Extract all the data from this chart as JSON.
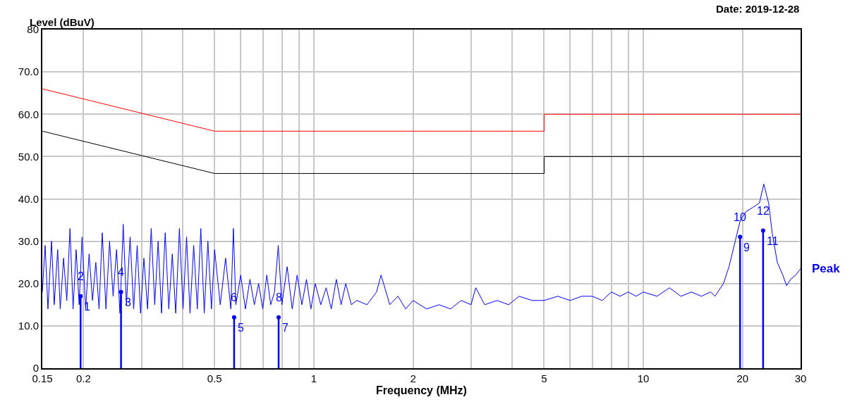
{
  "chart_data": {
    "type": "line",
    "xlabel": "Frequency (MHz)",
    "ylabel": "Level (dBuV)",
    "log": "x",
    "grid": true,
    "legend": false,
    "xlim": [
      0.15,
      30
    ],
    "ylim": [
      0,
      80
    ],
    "xticks": [
      0.15,
      0.2,
      {
        "value": 0.3,
        "label": null
      },
      {
        "value": 0.4,
        "label": null
      },
      0.5,
      {
        "value": 0.6,
        "label": null
      },
      {
        "value": 0.7,
        "label": null
      },
      {
        "value": 0.8,
        "label": null
      },
      {
        "value": 0.9,
        "label": null
      },
      1,
      2,
      {
        "value": 3,
        "label": null
      },
      {
        "value": 4,
        "label": null
      },
      5,
      {
        "value": 6,
        "label": null
      },
      {
        "value": 7,
        "label": null
      },
      {
        "value": 8,
        "label": null
      },
      {
        "value": 9,
        "label": null
      },
      10,
      20,
      30
    ],
    "yticks": [
      0,
      {
        "value": 10,
        "label": "10.0"
      },
      {
        "value": 20,
        "label": "20.0"
      },
      {
        "value": 30,
        "label": "30.0"
      },
      {
        "value": 40,
        "label": "40.0"
      },
      {
        "value": 50,
        "label": "50.0"
      },
      {
        "value": 60,
        "label": "60.0"
      },
      {
        "value": 70,
        "label": "70.0"
      },
      80
    ],
    "series": [
      {
        "color": "#ff0000",
        "x": [
          0.15,
          0.5,
          5,
          5,
          30
        ],
        "values": [
          66,
          56,
          56,
          60,
          60
        ]
      },
      {
        "color": "#000000",
        "x": [
          0.15,
          0.5,
          5,
          5,
          30
        ],
        "values": [
          56,
          46,
          46,
          50,
          50
        ]
      },
      {
        "name": "Peak",
        "color": "#0000ff",
        "x": [
          0.15,
          0.153,
          0.156,
          0.16,
          0.163,
          0.167,
          0.17,
          0.174,
          0.178,
          0.182,
          0.186,
          0.19,
          0.194,
          0.198,
          0.203,
          0.208,
          0.213,
          0.218,
          0.223,
          0.228,
          0.234,
          0.24,
          0.246,
          0.252,
          0.258,
          0.264,
          0.27,
          0.277,
          0.284,
          0.291,
          0.298,
          0.305,
          0.313,
          0.321,
          0.329,
          0.337,
          0.345,
          0.354,
          0.363,
          0.372,
          0.381,
          0.391,
          0.401,
          0.411,
          0.421,
          0.432,
          0.443,
          0.454,
          0.465,
          0.477,
          0.489,
          0.5,
          0.52,
          0.54,
          0.56,
          0.57,
          0.58,
          0.6,
          0.62,
          0.64,
          0.66,
          0.68,
          0.7,
          0.72,
          0.74,
          0.76,
          0.78,
          0.8,
          0.83,
          0.86,
          0.89,
          0.92,
          0.95,
          0.98,
          1.01,
          1.05,
          1.09,
          1.13,
          1.17,
          1.21,
          1.25,
          1.3,
          1.35,
          1.45,
          1.55,
          1.6,
          1.7,
          1.8,
          1.9,
          2.0,
          2.2,
          2.4,
          2.6,
          2.8,
          3.0,
          3.1,
          3.3,
          3.6,
          3.9,
          4.2,
          4.6,
          5.0,
          5.5,
          6,
          6.5,
          7,
          7.5,
          8,
          8.5,
          9,
          9.5,
          10,
          11,
          12,
          13,
          14,
          15,
          16,
          16.5,
          17.5,
          18.2,
          19,
          19.7,
          20.5,
          21.5,
          22.5,
          23.2,
          24,
          24.6,
          25.5,
          26.5,
          27.2,
          28,
          29,
          30
        ],
        "values": [
          18,
          29,
          14,
          30,
          15,
          28,
          14,
          26,
          16,
          33,
          14,
          28,
          15,
          31,
          14,
          27,
          16,
          25,
          14,
          32,
          14,
          30,
          17,
          28,
          13,
          34,
          15,
          31,
          14,
          29,
          13,
          26,
          14,
          33,
          15,
          30,
          13,
          32,
          14,
          27,
          13,
          33,
          14,
          31,
          13,
          29,
          14,
          33,
          13,
          30,
          14,
          28,
          15,
          26,
          14,
          33,
          15,
          22,
          14,
          21,
          15,
          20,
          14,
          22,
          15,
          18,
          29,
          15,
          24,
          14,
          22,
          15,
          21,
          14,
          20,
          15,
          19,
          14,
          21,
          15,
          20,
          15,
          16,
          15,
          18,
          22,
          15,
          17,
          14,
          16,
          14,
          15,
          14,
          16,
          15,
          19,
          15,
          16,
          15,
          17,
          16,
          16,
          17,
          16,
          17,
          17,
          16,
          18,
          17,
          18,
          17,
          18,
          17,
          19,
          17,
          18,
          17,
          18,
          17,
          20,
          24,
          30,
          35,
          37,
          38,
          39,
          43.5,
          39,
          32,
          25,
          22,
          19.5,
          21,
          22,
          23.5
        ]
      },
      {
        "type": "lollipop",
        "color": "#0000ff",
        "x": [
          0.196,
          0.26,
          0.573,
          0.782,
          19.66,
          23.09
        ],
        "values": [
          17,
          18,
          12,
          12,
          31,
          32.5
        ]
      }
    ],
    "annotations": [
      "Date: 2019-12-28",
      "1",
      "2",
      "3",
      "4",
      "5",
      "6",
      "7",
      "8",
      "9",
      "10",
      "11",
      "12"
    ]
  }
}
